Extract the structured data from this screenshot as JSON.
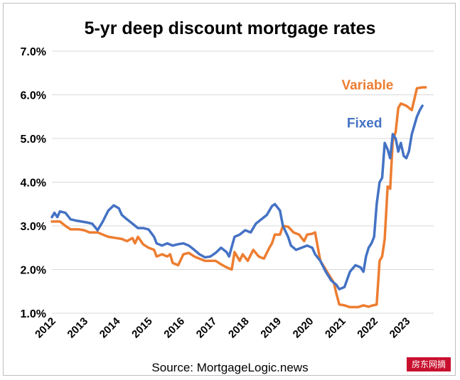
{
  "chart_data": {
    "type": "line",
    "title": "5-yr deep discount mortgage rates",
    "source": "Source: MortgageLogic.news",
    "ylim": [
      1.0,
      7.0
    ],
    "y_ticks": [
      "1.0%",
      "2.0%",
      "3.0%",
      "4.0%",
      "5.0%",
      "6.0%",
      "7.0%"
    ],
    "xlim": [
      2012,
      2023.85
    ],
    "x_ticks": [
      "2012",
      "2013",
      "2014",
      "2015",
      "2016",
      "2017",
      "2018",
      "2019",
      "2020",
      "2021",
      "2022",
      "2023"
    ],
    "grid": "horizontal",
    "legend": "inline labels",
    "series": [
      {
        "name": "Fixed",
        "color": "#4472c4",
        "points": [
          [
            2012.0,
            3.2
          ],
          [
            2012.08,
            3.3
          ],
          [
            2012.17,
            3.2
          ],
          [
            2012.25,
            3.33
          ],
          [
            2012.42,
            3.3
          ],
          [
            2012.58,
            3.15
          ],
          [
            2012.75,
            3.12
          ],
          [
            2012.92,
            3.1
          ],
          [
            2013.08,
            3.08
          ],
          [
            2013.25,
            3.05
          ],
          [
            2013.42,
            2.9
          ],
          [
            2013.58,
            3.1
          ],
          [
            2013.75,
            3.35
          ],
          [
            2013.92,
            3.47
          ],
          [
            2014.08,
            3.4
          ],
          [
            2014.17,
            3.25
          ],
          [
            2014.33,
            3.15
          ],
          [
            2014.5,
            3.05
          ],
          [
            2014.67,
            2.95
          ],
          [
            2014.83,
            2.95
          ],
          [
            2015.0,
            2.92
          ],
          [
            2015.17,
            2.75
          ],
          [
            2015.25,
            2.6
          ],
          [
            2015.42,
            2.55
          ],
          [
            2015.58,
            2.6
          ],
          [
            2015.75,
            2.55
          ],
          [
            2015.92,
            2.58
          ],
          [
            2016.08,
            2.6
          ],
          [
            2016.25,
            2.55
          ],
          [
            2016.42,
            2.45
          ],
          [
            2016.58,
            2.35
          ],
          [
            2016.75,
            2.28
          ],
          [
            2016.92,
            2.3
          ],
          [
            2017.08,
            2.38
          ],
          [
            2017.25,
            2.5
          ],
          [
            2017.42,
            2.4
          ],
          [
            2017.5,
            2.3
          ],
          [
            2017.67,
            2.75
          ],
          [
            2017.83,
            2.8
          ],
          [
            2018.0,
            2.9
          ],
          [
            2018.17,
            2.85
          ],
          [
            2018.33,
            3.05
          ],
          [
            2018.5,
            3.15
          ],
          [
            2018.67,
            3.25
          ],
          [
            2018.83,
            3.45
          ],
          [
            2018.92,
            3.5
          ],
          [
            2019.08,
            3.35
          ],
          [
            2019.17,
            3.0
          ],
          [
            2019.33,
            2.75
          ],
          [
            2019.42,
            2.55
          ],
          [
            2019.58,
            2.45
          ],
          [
            2019.75,
            2.5
          ],
          [
            2019.92,
            2.55
          ],
          [
            2020.08,
            2.5
          ],
          [
            2020.17,
            2.35
          ],
          [
            2020.33,
            2.2
          ],
          [
            2020.5,
            1.95
          ],
          [
            2020.67,
            1.75
          ],
          [
            2020.83,
            1.65
          ],
          [
            2020.92,
            1.55
          ],
          [
            2021.08,
            1.6
          ],
          [
            2021.25,
            1.95
          ],
          [
            2021.42,
            2.1
          ],
          [
            2021.58,
            2.05
          ],
          [
            2021.67,
            1.95
          ],
          [
            2021.75,
            2.3
          ],
          [
            2021.83,
            2.5
          ],
          [
            2021.92,
            2.6
          ],
          [
            2022.0,
            2.75
          ],
          [
            2022.08,
            3.5
          ],
          [
            2022.17,
            4.0
          ],
          [
            2022.25,
            4.1
          ],
          [
            2022.33,
            4.9
          ],
          [
            2022.42,
            4.75
          ],
          [
            2022.5,
            4.55
          ],
          [
            2022.58,
            5.1
          ],
          [
            2022.67,
            5.0
          ],
          [
            2022.75,
            4.7
          ],
          [
            2022.83,
            4.9
          ],
          [
            2022.92,
            4.6
          ],
          [
            2023.0,
            4.55
          ],
          [
            2023.08,
            4.7
          ],
          [
            2023.17,
            5.1
          ],
          [
            2023.25,
            5.3
          ],
          [
            2023.33,
            5.5
          ],
          [
            2023.42,
            5.65
          ],
          [
            2023.5,
            5.75
          ]
        ]
      },
      {
        "name": "Variable",
        "color": "#ed7d31",
        "points": [
          [
            2012.0,
            3.1
          ],
          [
            2012.25,
            3.1
          ],
          [
            2012.42,
            3.0
          ],
          [
            2012.58,
            2.92
          ],
          [
            2012.83,
            2.92
          ],
          [
            2013.0,
            2.9
          ],
          [
            2013.17,
            2.85
          ],
          [
            2013.42,
            2.85
          ],
          [
            2013.58,
            2.8
          ],
          [
            2013.75,
            2.75
          ],
          [
            2014.0,
            2.72
          ],
          [
            2014.17,
            2.7
          ],
          [
            2014.33,
            2.65
          ],
          [
            2014.5,
            2.72
          ],
          [
            2014.58,
            2.6
          ],
          [
            2014.67,
            2.75
          ],
          [
            2014.83,
            2.58
          ],
          [
            2015.0,
            2.5
          ],
          [
            2015.17,
            2.45
          ],
          [
            2015.25,
            2.3
          ],
          [
            2015.42,
            2.35
          ],
          [
            2015.58,
            2.3
          ],
          [
            2015.67,
            2.35
          ],
          [
            2015.75,
            2.15
          ],
          [
            2015.92,
            2.1
          ],
          [
            2016.08,
            2.35
          ],
          [
            2016.25,
            2.38
          ],
          [
            2016.42,
            2.3
          ],
          [
            2016.58,
            2.25
          ],
          [
            2016.75,
            2.2
          ],
          [
            2016.92,
            2.2
          ],
          [
            2017.08,
            2.2
          ],
          [
            2017.25,
            2.12
          ],
          [
            2017.42,
            2.05
          ],
          [
            2017.58,
            2.0
          ],
          [
            2017.67,
            2.4
          ],
          [
            2017.83,
            2.2
          ],
          [
            2017.92,
            2.35
          ],
          [
            2018.08,
            2.2
          ],
          [
            2018.25,
            2.45
          ],
          [
            2018.42,
            2.3
          ],
          [
            2018.58,
            2.25
          ],
          [
            2018.75,
            2.5
          ],
          [
            2018.83,
            2.6
          ],
          [
            2018.92,
            2.8
          ],
          [
            2019.08,
            2.8
          ],
          [
            2019.17,
            3.0
          ],
          [
            2019.33,
            2.98
          ],
          [
            2019.5,
            2.85
          ],
          [
            2019.67,
            2.8
          ],
          [
            2019.83,
            2.65
          ],
          [
            2019.92,
            2.8
          ],
          [
            2020.08,
            2.82
          ],
          [
            2020.17,
            2.85
          ],
          [
            2020.33,
            2.2
          ],
          [
            2020.5,
            2.0
          ],
          [
            2020.58,
            1.9
          ],
          [
            2020.75,
            1.7
          ],
          [
            2020.83,
            1.45
          ],
          [
            2020.92,
            1.2
          ],
          [
            2021.08,
            1.18
          ],
          [
            2021.25,
            1.14
          ],
          [
            2021.5,
            1.14
          ],
          [
            2021.67,
            1.18
          ],
          [
            2021.83,
            1.15
          ],
          [
            2021.92,
            1.17
          ],
          [
            2022.08,
            1.2
          ],
          [
            2022.17,
            2.2
          ],
          [
            2022.25,
            2.3
          ],
          [
            2022.33,
            2.7
          ],
          [
            2022.42,
            3.9
          ],
          [
            2022.5,
            3.85
          ],
          [
            2022.58,
            4.95
          ],
          [
            2022.67,
            5.15
          ],
          [
            2022.75,
            5.7
          ],
          [
            2022.83,
            5.8
          ],
          [
            2023.0,
            5.75
          ],
          [
            2023.17,
            5.65
          ],
          [
            2023.33,
            6.15
          ],
          [
            2023.5,
            6.17
          ],
          [
            2023.6,
            6.17
          ]
        ]
      }
    ],
    "annotations": [
      {
        "text": "Variable",
        "series": "Variable",
        "x": 2022.6,
        "y": 6.12
      },
      {
        "text": "Fixed",
        "series": "Fixed",
        "x": 2022.25,
        "y": 5.25
      }
    ]
  },
  "watermark": "房东网摘"
}
